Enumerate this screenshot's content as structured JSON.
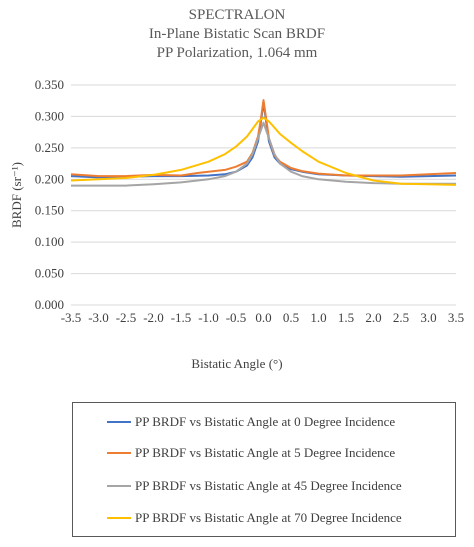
{
  "chart_data": {
    "type": "line",
    "title": "SPECTRALON",
    "subtitle_lines": [
      "In-Plane Bistatic Scan BRDF",
      "PP Polarization, 1.064 mm"
    ],
    "xlabel": "Bistatic Angle (°)",
    "ylabel": "BRDF (sr⁻¹)",
    "xlim": [
      -3.5,
      3.5
    ],
    "ylim": [
      0,
      0.35
    ],
    "x_ticks": [
      -3.5,
      -3.0,
      -2.5,
      -2.0,
      -1.5,
      -1.0,
      -0.5,
      0.0,
      0.5,
      1.0,
      1.5,
      2.0,
      2.5,
      3.0,
      3.5
    ],
    "y_ticks": [
      0,
      0.05,
      0.1,
      0.15,
      0.2,
      0.25,
      0.3,
      0.35
    ],
    "grid": "horizontal",
    "legend_position": "bottom",
    "series": [
      {
        "name": "PP BRDF vs Bistatic Angle at 0 Degree Incidence",
        "color": "#4472C4",
        "x": [
          -3.5,
          -3.0,
          -2.5,
          -2.0,
          -1.5,
          -1.0,
          -0.7,
          -0.5,
          -0.3,
          -0.2,
          -0.1,
          -0.05,
          0.0,
          0.05,
          0.1,
          0.2,
          0.3,
          0.5,
          0.7,
          1.0,
          1.5,
          2.0,
          2.5,
          3.0,
          3.5
        ],
        "y": [
          0.205,
          0.203,
          0.204,
          0.205,
          0.205,
          0.206,
          0.208,
          0.212,
          0.222,
          0.235,
          0.26,
          0.29,
          0.322,
          0.29,
          0.26,
          0.235,
          0.225,
          0.216,
          0.212,
          0.208,
          0.206,
          0.205,
          0.204,
          0.205,
          0.206
        ]
      },
      {
        "name": "PP BRDF vs Bistatic Angle at 5 Degree Incidence",
        "color": "#ED7D31",
        "x": [
          -3.5,
          -3.0,
          -2.5,
          -2.0,
          -1.5,
          -1.2,
          -1.0,
          -0.7,
          -0.5,
          -0.3,
          -0.2,
          -0.1,
          -0.05,
          0.0,
          0.05,
          0.1,
          0.2,
          0.3,
          0.5,
          0.7,
          1.0,
          1.5,
          2.0,
          2.5,
          3.0,
          3.5
        ],
        "y": [
          0.208,
          0.205,
          0.205,
          0.207,
          0.206,
          0.21,
          0.212,
          0.215,
          0.22,
          0.228,
          0.242,
          0.268,
          0.295,
          0.326,
          0.295,
          0.265,
          0.238,
          0.228,
          0.218,
          0.213,
          0.209,
          0.206,
          0.206,
          0.206,
          0.208,
          0.21
        ]
      },
      {
        "name": "PP BRDF vs Bistatic Angle at 45 Degree Incidence",
        "color": "#A5A5A5",
        "x": [
          -3.5,
          -3.0,
          -2.5,
          -2.0,
          -1.5,
          -1.0,
          -0.7,
          -0.5,
          -0.3,
          -0.2,
          -0.1,
          0.0,
          0.1,
          0.2,
          0.3,
          0.5,
          0.7,
          1.0,
          1.5,
          2.0,
          2.5,
          3.0,
          3.5
        ],
        "y": [
          0.19,
          0.19,
          0.19,
          0.192,
          0.195,
          0.2,
          0.205,
          0.212,
          0.225,
          0.24,
          0.265,
          0.29,
          0.265,
          0.24,
          0.225,
          0.212,
          0.205,
          0.2,
          0.196,
          0.194,
          0.193,
          0.193,
          0.193
        ]
      },
      {
        "name": "PP BRDF vs Bistatic Angle at 70 Degree Incidence",
        "color": "#FFC000",
        "x": [
          -3.5,
          -3.0,
          -2.5,
          -2.0,
          -1.5,
          -1.0,
          -0.7,
          -0.5,
          -0.3,
          -0.2,
          -0.1,
          0.0,
          0.1,
          0.2,
          0.3,
          0.5,
          0.7,
          1.0,
          1.5,
          2.0,
          2.5,
          3.0,
          3.5
        ],
        "y": [
          0.198,
          0.2,
          0.202,
          0.207,
          0.215,
          0.228,
          0.24,
          0.252,
          0.268,
          0.28,
          0.292,
          0.298,
          0.292,
          0.282,
          0.272,
          0.258,
          0.245,
          0.228,
          0.21,
          0.198,
          0.193,
          0.192,
          0.191
        ]
      }
    ]
  }
}
